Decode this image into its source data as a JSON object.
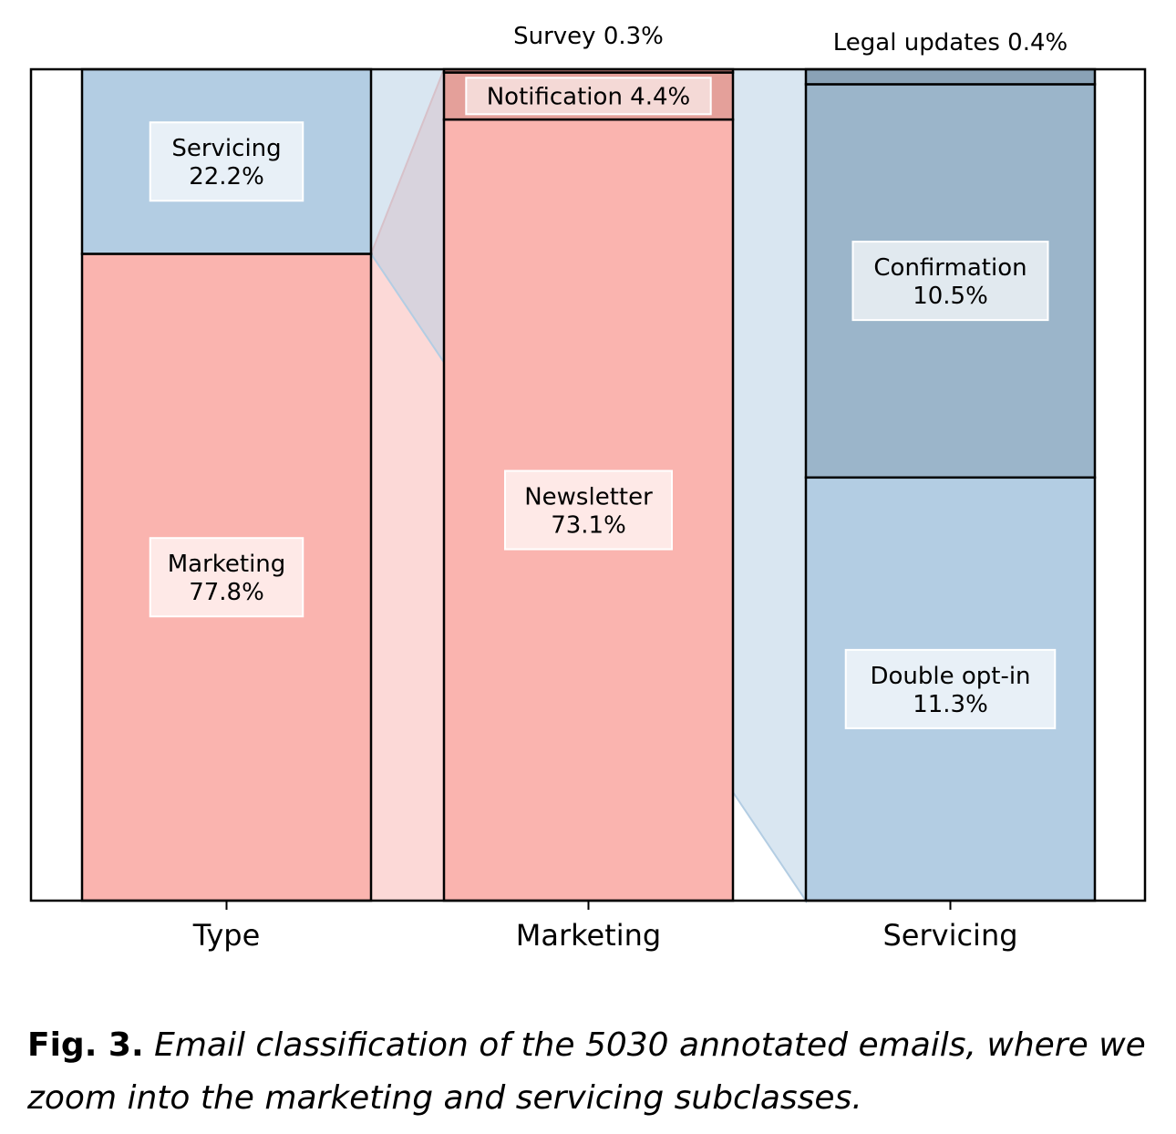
{
  "chart_data": {
    "type": "stacked-bar",
    "ylim": [
      0,
      100
    ],
    "categories": [
      "Type",
      "Marketing",
      "Servicing"
    ],
    "bars": [
      {
        "category": "Type",
        "segments": [
          {
            "label": "Marketing",
            "value": 77.8,
            "pct": "77.8%",
            "color": "#fab4af"
          },
          {
            "label": "Servicing",
            "value": 22.2,
            "pct": "22.2%",
            "color": "#b3cde3"
          }
        ]
      },
      {
        "category": "Marketing",
        "segments": [
          {
            "label": "Newsletter",
            "value": 73.1,
            "pct": "73.1%",
            "color": "#fab4af"
          },
          {
            "label": "Notification",
            "value": 4.4,
            "pct": "4.4%",
            "color": "#e4a09a"
          },
          {
            "label": "Survey",
            "value": 0.3,
            "pct": "0.3%",
            "color": "#d88c86"
          }
        ]
      },
      {
        "category": "Servicing",
        "segments": [
          {
            "label": "Double opt-in",
            "value": 11.3,
            "pct": "11.3%",
            "color": "#b3cde3"
          },
          {
            "label": "Confirmation",
            "value": 10.5,
            "pct": "10.5%",
            "color": "#9bb5ca"
          },
          {
            "label": "Legal updates",
            "value": 0.4,
            "pct": "0.4%",
            "color": "#8aa2b6"
          }
        ]
      }
    ],
    "zoom_links": [
      {
        "from": "Type",
        "segment": "Marketing",
        "to": "Marketing",
        "color": "#fab4af"
      },
      {
        "from": "Type",
        "segment": "Servicing",
        "to": "Servicing",
        "color": "#b3cde3"
      }
    ]
  },
  "caption": {
    "figure": "Fig. 3.",
    "text": "Email classification of the 5030 annotated emails, where we zoom into the marketing and servicing subclasses."
  }
}
